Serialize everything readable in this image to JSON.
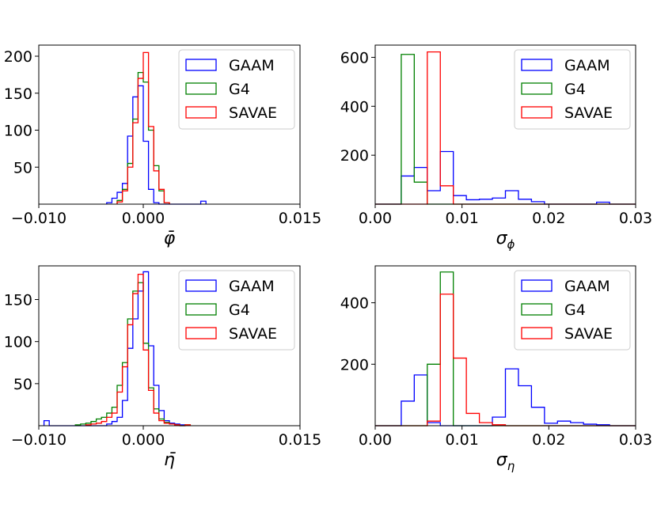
{
  "chart_data": [
    {
      "type": "histogram",
      "id": "phi-mean",
      "xlabel": "φ̄",
      "xlim": [
        -0.01,
        0.015
      ],
      "ylim": [
        0,
        215
      ],
      "xticks": [
        -0.01,
        0.0,
        0.015
      ],
      "xtick_labels": [
        "−0.010",
        "0.000",
        "0.015"
      ],
      "yticks": [
        50,
        100,
        150,
        200
      ],
      "ytick_labels": [
        "50",
        "100",
        "150",
        "200"
      ],
      "legend_position": "top-right",
      "series": [
        {
          "name": "GAAM",
          "color": "#0000ff",
          "edges": [
            -0.0035,
            -0.003,
            -0.0025,
            -0.002,
            -0.0015,
            -0.001,
            -0.0005,
            0.0,
            0.0005,
            0.001,
            0.0015,
            0.002,
            0.0025,
            0.003,
            0.0035,
            0.004,
            0.0045,
            0.005,
            0.0055,
            0.006
          ],
          "counts": [
            2,
            8,
            16,
            28,
            92,
            145,
            160,
            85,
            20,
            2,
            0,
            0,
            0,
            0,
            0,
            0,
            0,
            0,
            4
          ]
        },
        {
          "name": "G4",
          "color": "#008000",
          "edges": [
            -0.0025,
            -0.002,
            -0.0015,
            -0.001,
            -0.0005,
            0.0,
            0.0005,
            0.001,
            0.0015,
            0.002,
            0.0025
          ],
          "counts": [
            5,
            20,
            55,
            115,
            178,
            165,
            100,
            52,
            18,
            2
          ]
        },
        {
          "name": "SAVAE",
          "color": "#ff0000",
          "edges": [
            -0.0025,
            -0.002,
            -0.0015,
            -0.001,
            -0.0005,
            0.0,
            0.0005,
            0.001,
            0.0015,
            0.002,
            0.0025
          ],
          "counts": [
            3,
            18,
            50,
            110,
            170,
            205,
            105,
            45,
            20,
            2
          ]
        }
      ]
    },
    {
      "type": "histogram",
      "id": "phi-sigma",
      "xlabel": "σ_φ",
      "xlabel_main": "σ",
      "xlabel_sub": "ϕ",
      "xlim": [
        0.0,
        0.03
      ],
      "ylim": [
        0,
        650
      ],
      "xticks": [
        0.0,
        0.01,
        0.02,
        0.03
      ],
      "xtick_labels": [
        "0.00",
        "0.01",
        "0.02",
        "0.03"
      ],
      "yticks": [
        200,
        400,
        600
      ],
      "ytick_labels": [
        "200",
        "400",
        "600"
      ],
      "legend_position": "top-right",
      "series": [
        {
          "name": "GAAM",
          "color": "#0000ff",
          "edges": [
            0.0,
            0.0015,
            0.003,
            0.0045,
            0.006,
            0.0075,
            0.009,
            0.0105,
            0.012,
            0.0135,
            0.015,
            0.0165,
            0.018,
            0.0195,
            0.021,
            0.0225,
            0.024,
            0.0255,
            0.027,
            0.0285,
            0.03
          ],
          "counts": [
            0,
            0,
            115,
            150,
            55,
            215,
            35,
            18,
            20,
            25,
            55,
            20,
            10,
            0,
            0,
            0,
            0,
            8,
            0,
            0
          ]
        },
        {
          "name": "G4",
          "color": "#008000",
          "edges": [
            0.0,
            0.0015,
            0.003,
            0.0045,
            0.006,
            0.0075,
            0.009,
            0.0105,
            0.012,
            0.0135,
            0.015,
            0.0165,
            0.018,
            0.0195,
            0.021,
            0.0225,
            0.024,
            0.0255,
            0.027,
            0.0285,
            0.03
          ],
          "counts": [
            0,
            0,
            612,
            90,
            0,
            0,
            0,
            0,
            0,
            0,
            0,
            0,
            0,
            0,
            0,
            0,
            0,
            0,
            0,
            0
          ]
        },
        {
          "name": "SAVAE",
          "color": "#ff0000",
          "edges": [
            0.0,
            0.0015,
            0.003,
            0.0045,
            0.006,
            0.0075,
            0.009,
            0.0105,
            0.012,
            0.0135,
            0.015,
            0.0165,
            0.018,
            0.0195,
            0.021,
            0.0225,
            0.024,
            0.0255,
            0.027,
            0.0285,
            0.03
          ],
          "counts": [
            0,
            0,
            0,
            0,
            622,
            75,
            0,
            0,
            0,
            0,
            0,
            0,
            0,
            0,
            0,
            0,
            0,
            0,
            0,
            0
          ]
        }
      ]
    },
    {
      "type": "histogram",
      "id": "eta-mean",
      "xlabel": "η̄",
      "xlim": [
        -0.01,
        0.015
      ],
      "ylim": [
        0,
        190
      ],
      "xticks": [
        -0.01,
        0.0,
        0.015
      ],
      "xtick_labels": [
        "−0.010",
        "0.000",
        "0.015"
      ],
      "yticks": [
        50,
        100,
        150
      ],
      "ytick_labels": [
        "50",
        "100",
        "150"
      ],
      "legend_position": "top-right",
      "series": [
        {
          "name": "GAAM",
          "color": "#0000ff",
          "edges": [
            -0.0095,
            -0.009,
            -0.0085,
            -0.008,
            -0.0075,
            -0.007,
            -0.0065,
            -0.006,
            -0.0055,
            -0.005,
            -0.0045,
            -0.004,
            -0.0035,
            -0.003,
            -0.0025,
            -0.002,
            -0.0015,
            -0.001,
            -0.0005,
            0.0,
            0.0005,
            0.001,
            0.0015,
            0.002,
            0.0025,
            0.003,
            0.0035,
            0.004
          ],
          "counts": [
            6,
            0,
            0,
            0,
            0,
            0,
            0,
            0,
            0,
            0,
            0,
            0,
            2,
            5,
            10,
            30,
            92,
            127,
            160,
            183,
            95,
            48,
            18,
            6,
            3,
            2,
            1
          ]
        },
        {
          "name": "G4",
          "color": "#008000",
          "edges": [
            -0.0065,
            -0.006,
            -0.0055,
            -0.005,
            -0.0045,
            -0.004,
            -0.0035,
            -0.003,
            -0.0025,
            -0.002,
            -0.0015,
            -0.001,
            -0.0005,
            0.0,
            0.0005,
            0.001,
            0.0015,
            0.002,
            0.0025,
            0.003,
            0.0035,
            0.004,
            0.0045
          ],
          "counts": [
            1,
            2,
            3,
            5,
            8,
            10,
            15,
            22,
            48,
            75,
            127,
            160,
            170,
            98,
            45,
            20,
            8,
            4,
            2,
            1,
            0,
            1
          ]
        },
        {
          "name": "SAVAE",
          "color": "#ff0000",
          "edges": [
            -0.0055,
            -0.005,
            -0.0045,
            -0.004,
            -0.0035,
            -0.003,
            -0.0025,
            -0.002,
            -0.0015,
            -0.001,
            -0.0005,
            0.0,
            0.0005,
            0.001,
            0.0015,
            0.002,
            0.0025,
            0.003,
            0.0035,
            0.004,
            0.0045
          ],
          "counts": [
            1,
            2,
            3,
            5,
            10,
            15,
            40,
            70,
            120,
            157,
            180,
            90,
            42,
            15,
            6,
            3,
            2,
            1,
            0,
            1
          ]
        }
      ]
    },
    {
      "type": "histogram",
      "id": "eta-sigma",
      "xlabel": "σ_η",
      "xlabel_main": "σ",
      "xlabel_sub": "η",
      "xlim": [
        0.0,
        0.03
      ],
      "ylim": [
        0,
        520
      ],
      "xticks": [
        0.0,
        0.01,
        0.02,
        0.03
      ],
      "xtick_labels": [
        "0.00",
        "0.01",
        "0.02",
        "0.03"
      ],
      "yticks": [
        200,
        400
      ],
      "ytick_labels": [
        "200",
        "400"
      ],
      "legend_position": "top-right",
      "series": [
        {
          "name": "GAAM",
          "color": "#0000ff",
          "edges": [
            0.0,
            0.0015,
            0.003,
            0.0045,
            0.006,
            0.0075,
            0.009,
            0.0105,
            0.012,
            0.0135,
            0.015,
            0.0165,
            0.018,
            0.0195,
            0.021,
            0.0225,
            0.024,
            0.0255,
            0.027,
            0.0285,
            0.03
          ],
          "counts": [
            0,
            0,
            80,
            165,
            10,
            0,
            0,
            0,
            0,
            28,
            185,
            130,
            60,
            8,
            15,
            10,
            5,
            3,
            0,
            0
          ]
        },
        {
          "name": "G4",
          "color": "#008000",
          "edges": [
            0.0,
            0.0015,
            0.003,
            0.0045,
            0.006,
            0.0075,
            0.009,
            0.0105,
            0.012,
            0.0135,
            0.015,
            0.0165,
            0.018,
            0.0195,
            0.021,
            0.0225,
            0.024,
            0.0255,
            0.027,
            0.0285,
            0.03
          ],
          "counts": [
            0,
            0,
            0,
            0,
            200,
            500,
            0,
            0,
            0,
            0,
            0,
            0,
            0,
            0,
            0,
            0,
            0,
            0,
            0,
            0
          ]
        },
        {
          "name": "SAVAE",
          "color": "#ff0000",
          "edges": [
            0.0,
            0.0015,
            0.003,
            0.0045,
            0.006,
            0.0075,
            0.009,
            0.0105,
            0.012,
            0.0135,
            0.015,
            0.0165,
            0.018,
            0.0195,
            0.021,
            0.0225,
            0.024,
            0.0255,
            0.027,
            0.0285,
            0.03
          ],
          "counts": [
            0,
            0,
            0,
            0,
            15,
            428,
            220,
            40,
            10,
            3,
            0,
            0,
            0,
            0,
            0,
            0,
            0,
            0,
            0,
            0
          ]
        }
      ]
    }
  ]
}
